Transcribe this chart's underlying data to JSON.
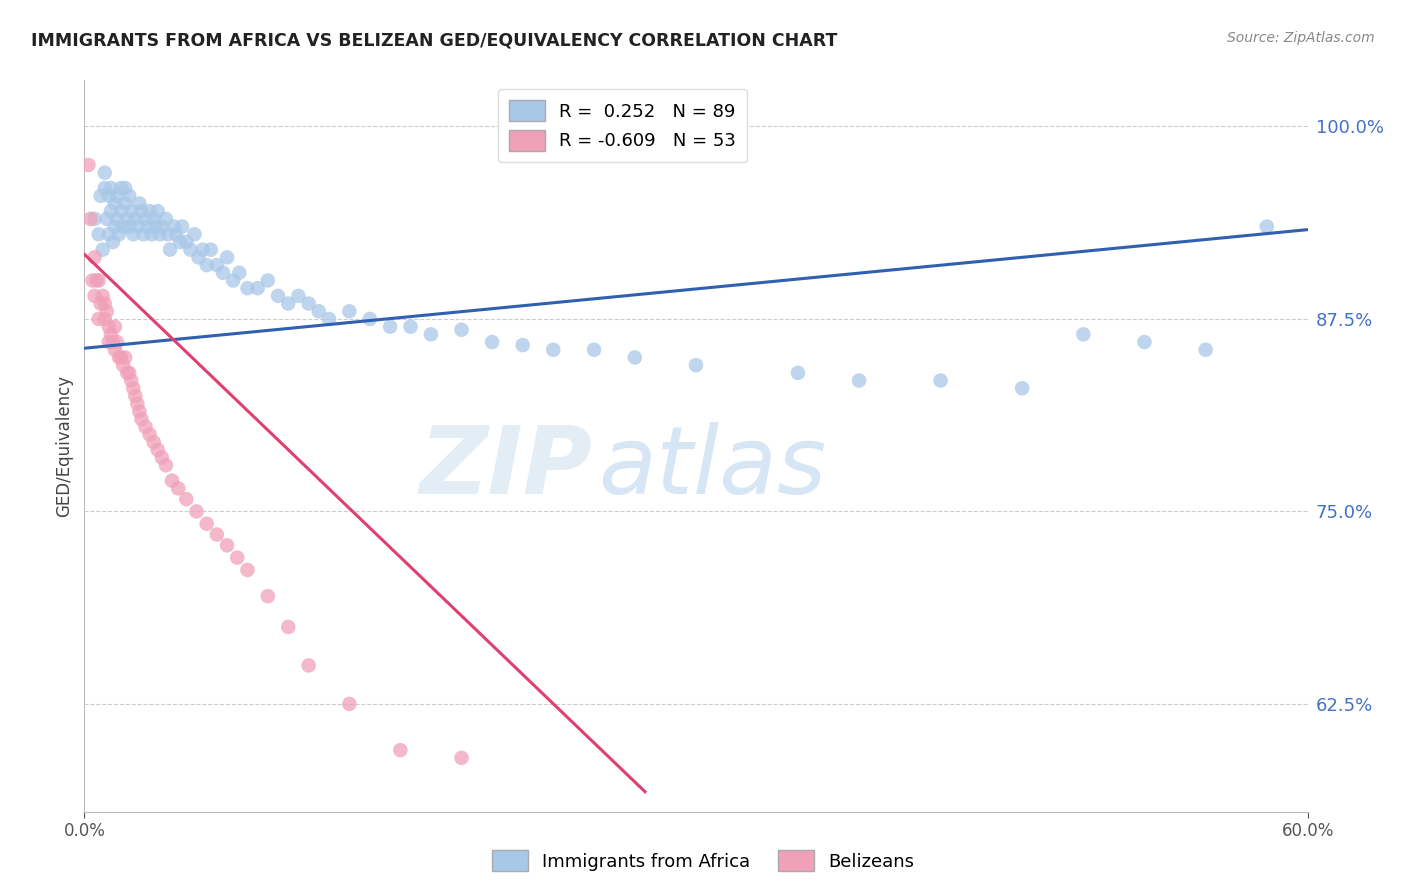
{
  "title": "IMMIGRANTS FROM AFRICA VS BELIZEAN GED/EQUIVALENCY CORRELATION CHART",
  "source": "Source: ZipAtlas.com",
  "ylabel": "GED/Equivalency",
  "y_ticks": [
    0.625,
    0.75,
    0.875,
    1.0
  ],
  "y_tick_labels": [
    "62.5%",
    "75.0%",
    "87.5%",
    "100.0%"
  ],
  "x_min": 0.0,
  "x_max": 0.6,
  "y_min": 0.555,
  "y_max": 1.03,
  "blue_R": 0.252,
  "blue_N": 89,
  "pink_R": -0.609,
  "pink_N": 53,
  "blue_color": "#a8c8e8",
  "pink_color": "#f0a0b8",
  "blue_line_color": "#3060b0",
  "pink_line_color": "#e04070",
  "legend_label_blue": "Immigrants from Africa",
  "legend_label_pink": "Belizeans",
  "watermark_zip": "ZIP",
  "watermark_atlas": "atlas",
  "blue_line_x": [
    0.0,
    0.6
  ],
  "blue_line_y": [
    0.856,
    0.933
  ],
  "pink_line_x": [
    0.0,
    0.275
  ],
  "pink_line_y": [
    0.917,
    0.568
  ],
  "blue_scatter_x": [
    0.005,
    0.007,
    0.008,
    0.009,
    0.01,
    0.01,
    0.011,
    0.012,
    0.012,
    0.013,
    0.013,
    0.014,
    0.015,
    0.015,
    0.016,
    0.016,
    0.017,
    0.018,
    0.018,
    0.019,
    0.02,
    0.02,
    0.021,
    0.022,
    0.022,
    0.023,
    0.024,
    0.025,
    0.026,
    0.027,
    0.028,
    0.029,
    0.03,
    0.031,
    0.032,
    0.033,
    0.034,
    0.035,
    0.036,
    0.037,
    0.038,
    0.04,
    0.041,
    0.042,
    0.044,
    0.045,
    0.047,
    0.048,
    0.05,
    0.052,
    0.054,
    0.056,
    0.058,
    0.06,
    0.062,
    0.065,
    0.068,
    0.07,
    0.073,
    0.076,
    0.08,
    0.085,
    0.09,
    0.095,
    0.1,
    0.105,
    0.11,
    0.115,
    0.12,
    0.13,
    0.14,
    0.15,
    0.16,
    0.17,
    0.185,
    0.2,
    0.215,
    0.23,
    0.25,
    0.27,
    0.3,
    0.35,
    0.38,
    0.42,
    0.46,
    0.49,
    0.52,
    0.55,
    0.58
  ],
  "blue_scatter_y": [
    0.94,
    0.93,
    0.955,
    0.92,
    0.96,
    0.97,
    0.94,
    0.93,
    0.955,
    0.945,
    0.96,
    0.925,
    0.935,
    0.95,
    0.94,
    0.955,
    0.93,
    0.945,
    0.96,
    0.935,
    0.95,
    0.96,
    0.94,
    0.935,
    0.955,
    0.945,
    0.93,
    0.94,
    0.935,
    0.95,
    0.945,
    0.93,
    0.94,
    0.935,
    0.945,
    0.93,
    0.94,
    0.935,
    0.945,
    0.93,
    0.935,
    0.94,
    0.93,
    0.92,
    0.935,
    0.93,
    0.925,
    0.935,
    0.925,
    0.92,
    0.93,
    0.915,
    0.92,
    0.91,
    0.92,
    0.91,
    0.905,
    0.915,
    0.9,
    0.905,
    0.895,
    0.895,
    0.9,
    0.89,
    0.885,
    0.89,
    0.885,
    0.88,
    0.875,
    0.88,
    0.875,
    0.87,
    0.87,
    0.865,
    0.868,
    0.86,
    0.858,
    0.855,
    0.855,
    0.85,
    0.845,
    0.84,
    0.835,
    0.835,
    0.83,
    0.865,
    0.86,
    0.855,
    0.935
  ],
  "pink_scatter_x": [
    0.002,
    0.003,
    0.004,
    0.005,
    0.005,
    0.006,
    0.007,
    0.007,
    0.008,
    0.009,
    0.01,
    0.01,
    0.011,
    0.012,
    0.012,
    0.013,
    0.014,
    0.015,
    0.015,
    0.016,
    0.017,
    0.018,
    0.019,
    0.02,
    0.021,
    0.022,
    0.023,
    0.024,
    0.025,
    0.026,
    0.027,
    0.028,
    0.03,
    0.032,
    0.034,
    0.036,
    0.038,
    0.04,
    0.043,
    0.046,
    0.05,
    0.055,
    0.06,
    0.065,
    0.07,
    0.075,
    0.08,
    0.09,
    0.1,
    0.11,
    0.13,
    0.155,
    0.185
  ],
  "pink_scatter_y": [
    0.975,
    0.94,
    0.9,
    0.915,
    0.89,
    0.9,
    0.9,
    0.875,
    0.885,
    0.89,
    0.885,
    0.875,
    0.88,
    0.87,
    0.86,
    0.865,
    0.86,
    0.87,
    0.855,
    0.86,
    0.85,
    0.85,
    0.845,
    0.85,
    0.84,
    0.84,
    0.835,
    0.83,
    0.825,
    0.82,
    0.815,
    0.81,
    0.805,
    0.8,
    0.795,
    0.79,
    0.785,
    0.78,
    0.77,
    0.765,
    0.758,
    0.75,
    0.742,
    0.735,
    0.728,
    0.72,
    0.712,
    0.695,
    0.675,
    0.65,
    0.625,
    0.595,
    0.59
  ]
}
